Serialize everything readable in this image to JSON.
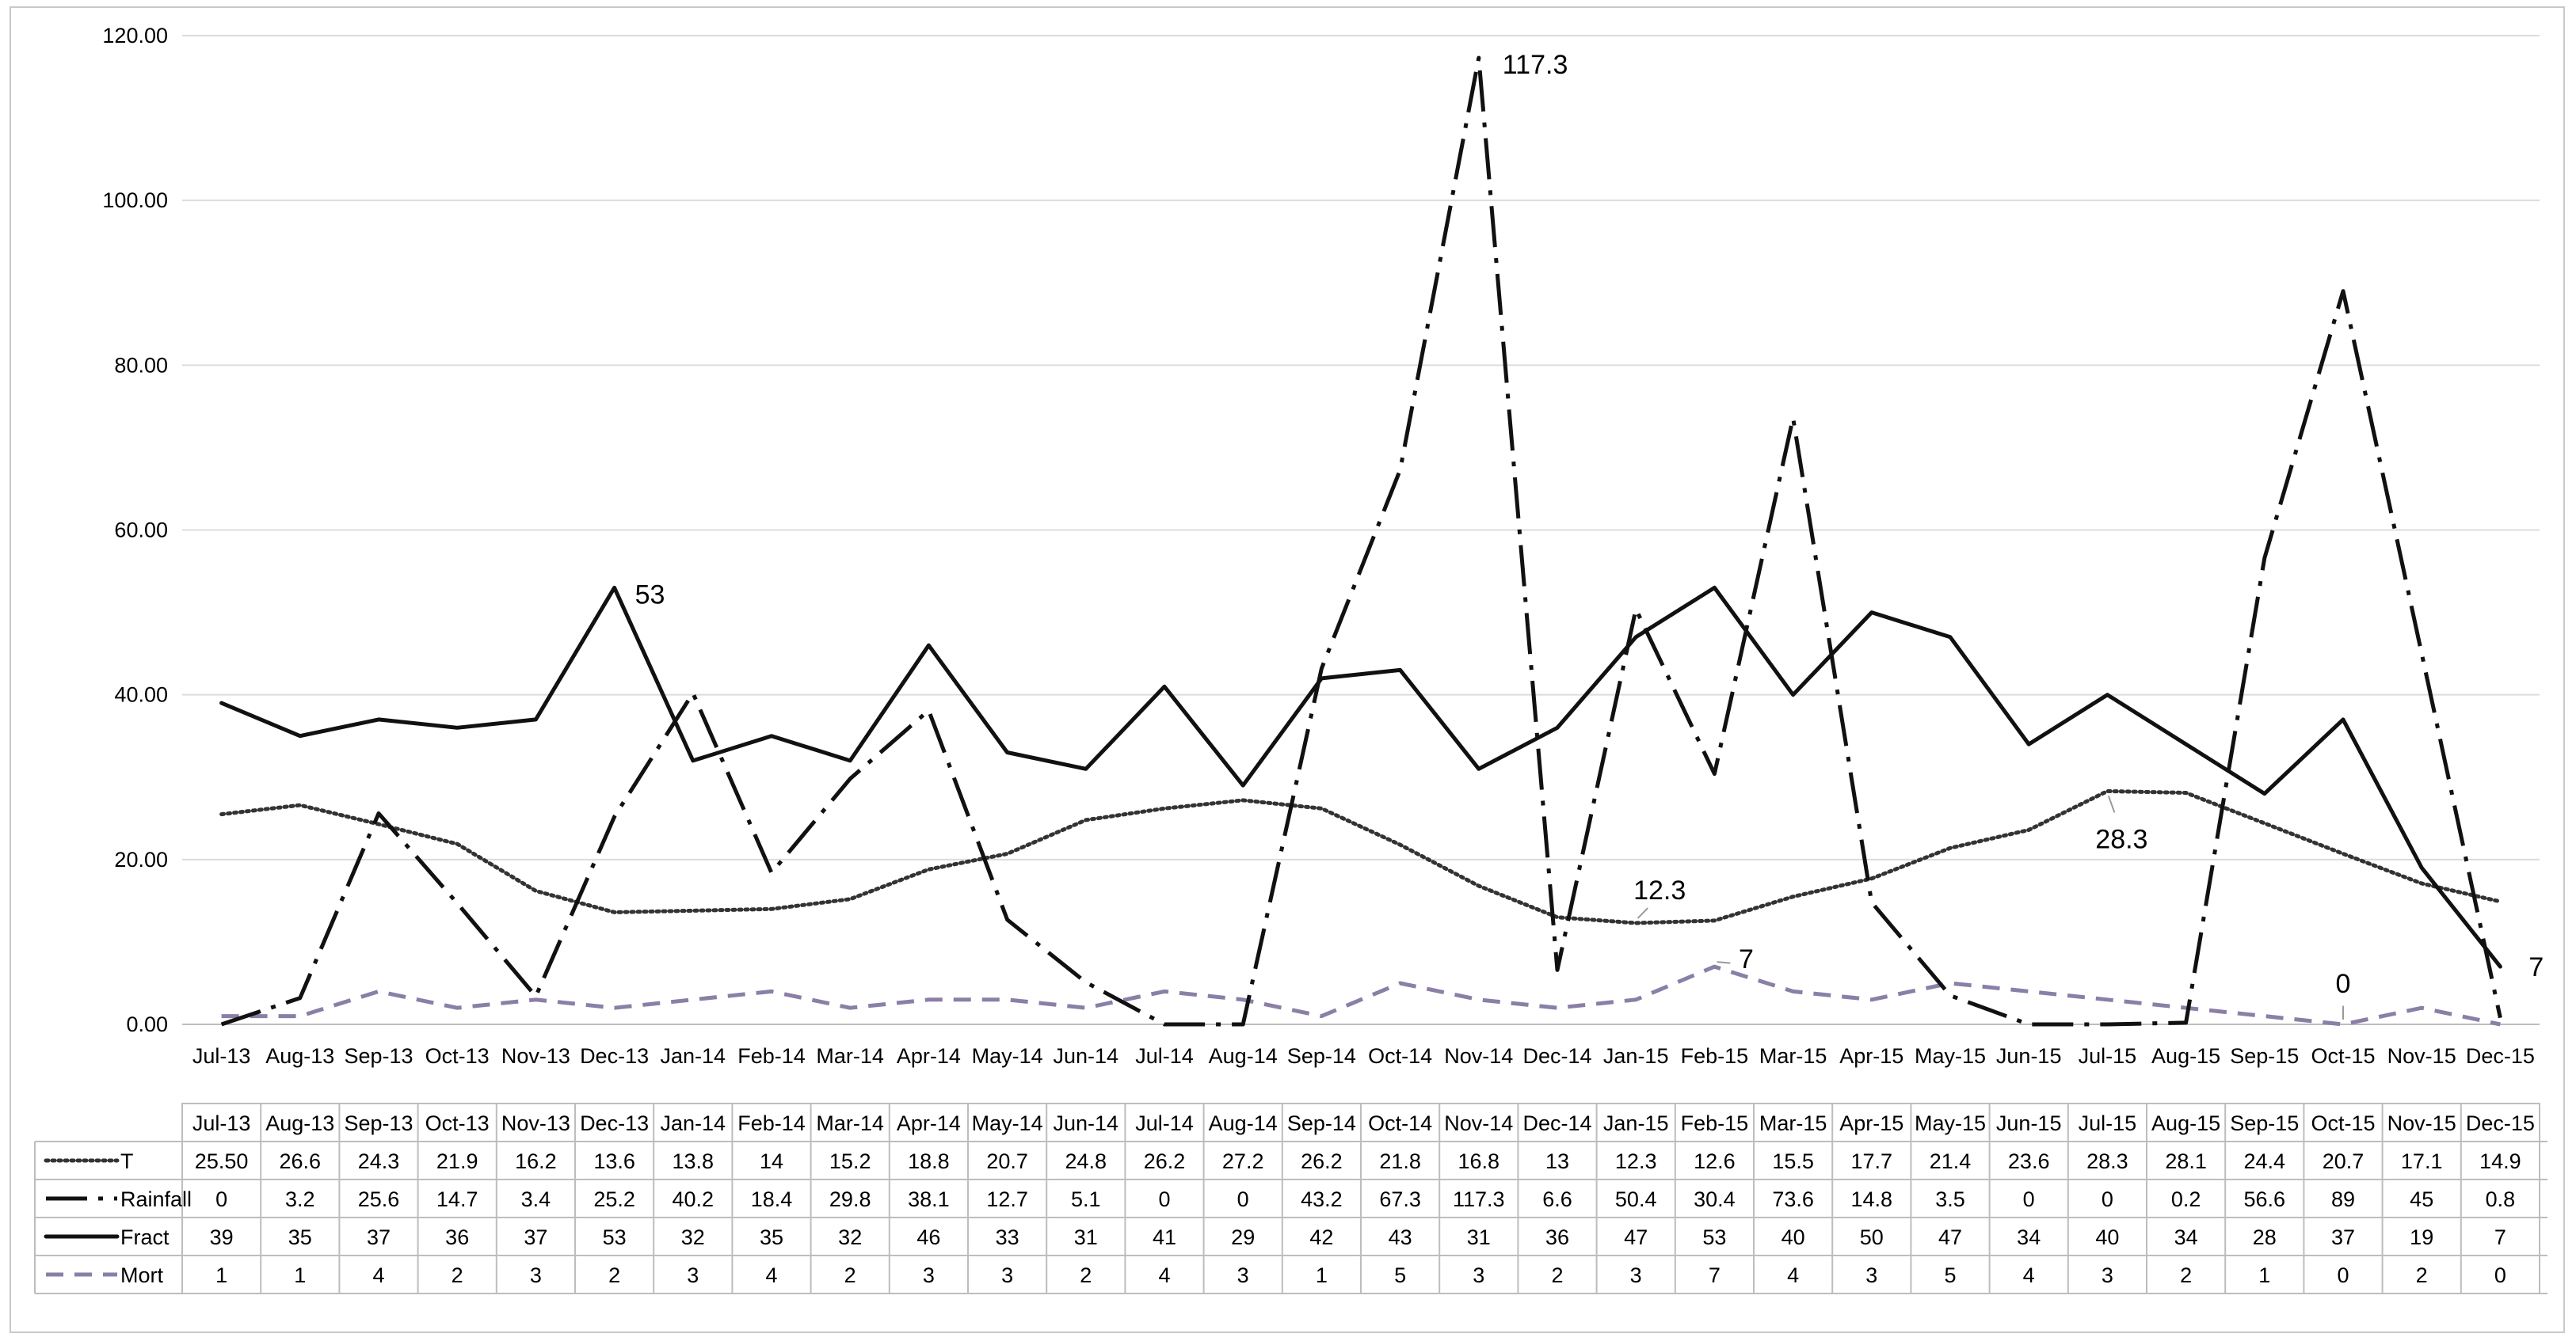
{
  "chart_data": {
    "type": "line",
    "title": "",
    "xlabel": "",
    "ylabel": "",
    "ylim": [
      0,
      120
    ],
    "yticks": [
      "0.00",
      "20.00",
      "40.00",
      "60.00",
      "80.00",
      "100.00",
      "120.00"
    ],
    "grid": "horizontal",
    "categories": [
      "Jul-13",
      "Aug-13",
      "Sep-13",
      "Oct-13",
      "Nov-13",
      "Dec-13",
      "Jan-14",
      "Feb-14",
      "Mar-14",
      "Apr-14",
      "May-14",
      "Jun-14",
      "Jul-14",
      "Aug-14",
      "Sep-14",
      "Oct-14",
      "Nov-14",
      "Dec-14",
      "Jan-15",
      "Feb-15",
      "Mar-15",
      "Apr-15",
      "May-15",
      "Jun-15",
      "Jul-15",
      "Aug-15",
      "Sep-15",
      "Oct-15",
      "Nov-15",
      "Dec-15"
    ],
    "series": [
      {
        "name": "T",
        "style": "dotted",
        "color": "#333333",
        "values": [
          25.5,
          26.6,
          24.3,
          21.9,
          16.2,
          13.6,
          13.8,
          14,
          15.2,
          18.8,
          20.7,
          24.8,
          26.2,
          27.2,
          26.2,
          21.8,
          16.8,
          13,
          12.3,
          12.6,
          15.5,
          17.7,
          21.4,
          23.6,
          28.3,
          28.1,
          24.4,
          20.7,
          17.1,
          14.9
        ],
        "table_values": [
          "25.50",
          "26.6",
          "24.3",
          "21.9",
          "16.2",
          "13.6",
          "13.8",
          "14",
          "15.2",
          "18.8",
          "20.7",
          "24.8",
          "26.2",
          "27.2",
          "26.2",
          "21.8",
          "16.8",
          "13",
          "12.3",
          "12.6",
          "15.5",
          "17.7",
          "21.4",
          "23.6",
          "28.3",
          "28.1",
          "24.4",
          "20.7",
          "17.1",
          "14.9"
        ]
      },
      {
        "name": "Rainfall",
        "style": "dash-dot",
        "color": "#111111",
        "values": [
          0,
          3.2,
          25.6,
          14.7,
          3.4,
          25.2,
          40.2,
          18.4,
          29.8,
          38.1,
          12.7,
          5.1,
          0,
          0,
          43.2,
          67.3,
          117.3,
          6.6,
          50.4,
          30.4,
          73.6,
          14.8,
          3.5,
          0,
          0,
          0.2,
          56.6,
          89,
          45,
          0.8
        ],
        "table_values": [
          "0",
          "3.2",
          "25.6",
          "14.7",
          "3.4",
          "25.2",
          "40.2",
          "18.4",
          "29.8",
          "38.1",
          "12.7",
          "5.1",
          "0",
          "0",
          "43.2",
          "67.3",
          "117.3",
          "6.6",
          "50.4",
          "30.4",
          "73.6",
          "14.8",
          "3.5",
          "0",
          "0",
          "0.2",
          "56.6",
          "89",
          "45",
          "0.8"
        ]
      },
      {
        "name": "Fract",
        "style": "solid",
        "color": "#111111",
        "values": [
          39,
          35,
          37,
          36,
          37,
          53,
          32,
          35,
          32,
          46,
          33,
          31,
          41,
          29,
          42,
          43,
          31,
          36,
          47,
          53,
          40,
          50,
          47,
          34,
          40,
          34,
          28,
          37,
          19,
          7
        ],
        "table_values": [
          "39",
          "35",
          "37",
          "36",
          "37",
          "53",
          "32",
          "35",
          "32",
          "46",
          "33",
          "31",
          "41",
          "29",
          "42",
          "43",
          "31",
          "36",
          "47",
          "53",
          "40",
          "50",
          "47",
          "34",
          "40",
          "34",
          "28",
          "37",
          "19",
          "7"
        ]
      },
      {
        "name": "Mort",
        "style": "dashed",
        "color": "#8a7fa6",
        "values": [
          1,
          1,
          4,
          2,
          3,
          2,
          3,
          4,
          2,
          3,
          3,
          2,
          4,
          3,
          1,
          5,
          3,
          2,
          3,
          7,
          4,
          3,
          5,
          4,
          3,
          2,
          1,
          0,
          2,
          0
        ],
        "table_values": [
          "1",
          "1",
          "4",
          "2",
          "3",
          "2",
          "3",
          "4",
          "2",
          "3",
          "3",
          "2",
          "4",
          "3",
          "1",
          "5",
          "3",
          "2",
          "3",
          "7",
          "4",
          "3",
          "5",
          "4",
          "3",
          "2",
          "1",
          "0",
          "2",
          "0"
        ]
      }
    ],
    "annotations": [
      {
        "text": "117.3",
        "series": "Rainfall",
        "index": 16
      },
      {
        "text": "53",
        "series": "Fract",
        "index": 5
      },
      {
        "text": "12.3",
        "series": "T",
        "index": 18
      },
      {
        "text": "28.3",
        "series": "T",
        "index": 24
      },
      {
        "text": "0",
        "series": "Mort",
        "index": 27
      },
      {
        "text": "7",
        "series": "Fract",
        "index": 29
      },
      {
        "text": "7",
        "series": "Mort",
        "index": 19
      }
    ]
  }
}
